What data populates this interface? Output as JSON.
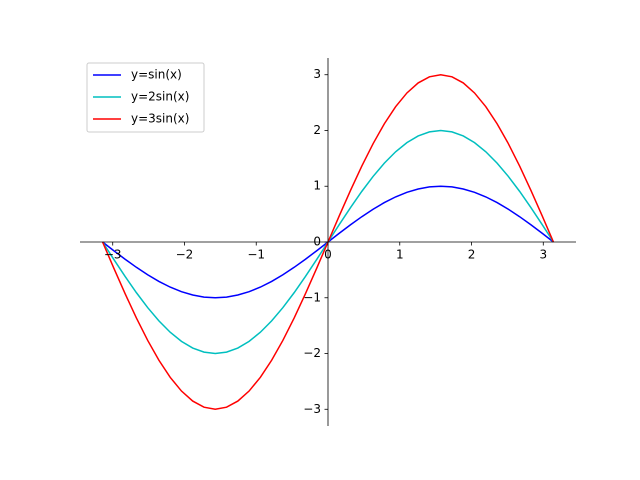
{
  "chart_data": {
    "type": "line",
    "x": [
      -3.1416,
      -2.9845,
      -2.8274,
      -2.6704,
      -2.5133,
      -2.3562,
      -2.1991,
      -2.042,
      -1.885,
      -1.7279,
      -1.5708,
      -1.4137,
      -1.2566,
      -1.0996,
      -0.9425,
      -0.7854,
      -0.6283,
      -0.4712,
      -0.3142,
      -0.1571,
      0,
      0.1571,
      0.3142,
      0.4712,
      0.6283,
      0.7854,
      0.9425,
      1.0996,
      1.2566,
      1.4137,
      1.5708,
      1.7279,
      1.885,
      2.042,
      2.1991,
      2.3562,
      2.5133,
      2.6704,
      2.8274,
      2.9845,
      3.1416
    ],
    "series": [
      {
        "name": "y=sin(x)",
        "color": "#0000ff",
        "values": [
          0,
          -0.1564,
          -0.309,
          -0.454,
          -0.5878,
          -0.7071,
          -0.809,
          -0.891,
          -0.9511,
          -0.9877,
          -1,
          -0.9877,
          -0.9511,
          -0.891,
          -0.809,
          -0.7071,
          -0.5878,
          -0.454,
          -0.309,
          -0.1564,
          0,
          0.1564,
          0.309,
          0.454,
          0.5878,
          0.7071,
          0.809,
          0.891,
          0.9511,
          0.9877,
          1,
          0.9877,
          0.9511,
          0.891,
          0.809,
          0.7071,
          0.5878,
          0.454,
          0.309,
          0.1564,
          0
        ]
      },
      {
        "name": "y=2sin(x)",
        "color": "#00bfbf",
        "values": [
          0,
          -0.3128,
          -0.618,
          -0.908,
          -1.1756,
          -1.4142,
          -1.618,
          -1.782,
          -1.9022,
          -1.9754,
          -2,
          -1.9754,
          -1.9022,
          -1.782,
          -1.618,
          -1.4142,
          -1.1756,
          -0.908,
          -0.618,
          -0.3128,
          0,
          0.3128,
          0.618,
          0.908,
          1.1756,
          1.4142,
          1.618,
          1.782,
          1.9022,
          1.9754,
          2,
          1.9754,
          1.9022,
          1.782,
          1.618,
          1.4142,
          1.1756,
          0.908,
          0.618,
          0.3128,
          0
        ]
      },
      {
        "name": "y=3sin(x)",
        "color": "#ff0000",
        "values": [
          0,
          -0.4692,
          -0.927,
          -1.362,
          -1.7634,
          -2.1213,
          -2.427,
          -2.673,
          -2.8533,
          -2.9631,
          -3,
          -2.9631,
          -2.8533,
          -2.673,
          -2.427,
          -2.1213,
          -1.7634,
          -1.362,
          -0.927,
          -0.4692,
          0,
          0.4692,
          0.927,
          1.362,
          1.7634,
          2.1213,
          2.427,
          2.673,
          2.8533,
          2.9631,
          3,
          2.9631,
          2.8533,
          2.673,
          2.427,
          2.1213,
          1.7634,
          1.362,
          0.927,
          0.4692,
          0
        ]
      }
    ],
    "xlim": [
      -3.456,
      3.456
    ],
    "ylim": [
      -3.3,
      3.3
    ],
    "xticks": [
      {
        "value": -3,
        "label": "−3"
      },
      {
        "value": -2,
        "label": "−2"
      },
      {
        "value": -1,
        "label": "−1"
      },
      0,
      1,
      2,
      3
    ],
    "yticks": [
      {
        "value": -3,
        "label": "−3"
      },
      {
        "value": -2,
        "label": "−2"
      },
      {
        "value": -1,
        "label": "−1"
      },
      0,
      1,
      2,
      3
    ],
    "legend": "upper left"
  }
}
